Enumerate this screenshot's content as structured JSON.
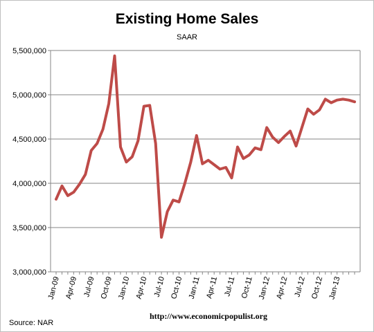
{
  "chart_data": {
    "type": "line",
    "title": "Existing Home Sales",
    "subtitle": "SAAR",
    "source": "Source:  NAR",
    "url": "http://www.economicpopulist.org",
    "ylim": [
      3000000,
      5500000
    ],
    "yticks": [
      "3,000,000",
      "3,500,000",
      "4,000,000",
      "4,500,000",
      "5,000,000",
      "5,500,000"
    ],
    "ytick_values": [
      3000000,
      3500000,
      4000000,
      4500000,
      5000000,
      5500000
    ],
    "xtick_labels": [
      "Jan-09",
      "Apr-09",
      "Jul-09",
      "Oct-09",
      "Jan-10",
      "Apr-10",
      "Jul-10",
      "Oct-10",
      "Jan-11",
      "Apr-11",
      "Jul-11",
      "Oct-11",
      "Jan-12",
      "Apr-12",
      "Jul-12",
      "Oct-12",
      "Jan-13"
    ],
    "grid": true,
    "series_color": "#be4b48",
    "x": [
      "Jan-09",
      "Feb-09",
      "Mar-09",
      "Apr-09",
      "May-09",
      "Jun-09",
      "Jul-09",
      "Aug-09",
      "Sep-09",
      "Oct-09",
      "Nov-09",
      "Dec-09",
      "Jan-10",
      "Feb-10",
      "Mar-10",
      "Apr-10",
      "May-10",
      "Jun-10",
      "Jul-10",
      "Aug-10",
      "Sep-10",
      "Oct-10",
      "Nov-10",
      "Dec-10",
      "Jan-11",
      "Feb-11",
      "Mar-11",
      "Apr-11",
      "May-11",
      "Jun-11",
      "Jul-11",
      "Aug-11",
      "Sep-11",
      "Oct-11",
      "Nov-11",
      "Dec-11",
      "Jan-12",
      "Feb-12",
      "Mar-12",
      "Apr-12",
      "May-12",
      "Jun-12",
      "Jul-12",
      "Aug-12",
      "Sep-12",
      "Oct-12",
      "Nov-12",
      "Dec-12",
      "Jan-13",
      "Feb-13",
      "Mar-13",
      "Apr-13"
    ],
    "values": [
      3820000,
      3970000,
      3860000,
      3900000,
      3990000,
      4100000,
      4370000,
      4450000,
      4610000,
      4900000,
      5440000,
      4410000,
      4240000,
      4300000,
      4480000,
      4870000,
      4880000,
      4450000,
      3390000,
      3680000,
      3810000,
      3790000,
      4000000,
      4240000,
      4540000,
      4220000,
      4260000,
      4210000,
      4160000,
      4180000,
      4060000,
      4410000,
      4280000,
      4320000,
      4400000,
      4380000,
      4630000,
      4520000,
      4460000,
      4530000,
      4590000,
      4420000,
      4630000,
      4840000,
      4780000,
      4830000,
      4950000,
      4910000,
      4940000,
      4950000,
      4940000,
      4920000
    ]
  }
}
